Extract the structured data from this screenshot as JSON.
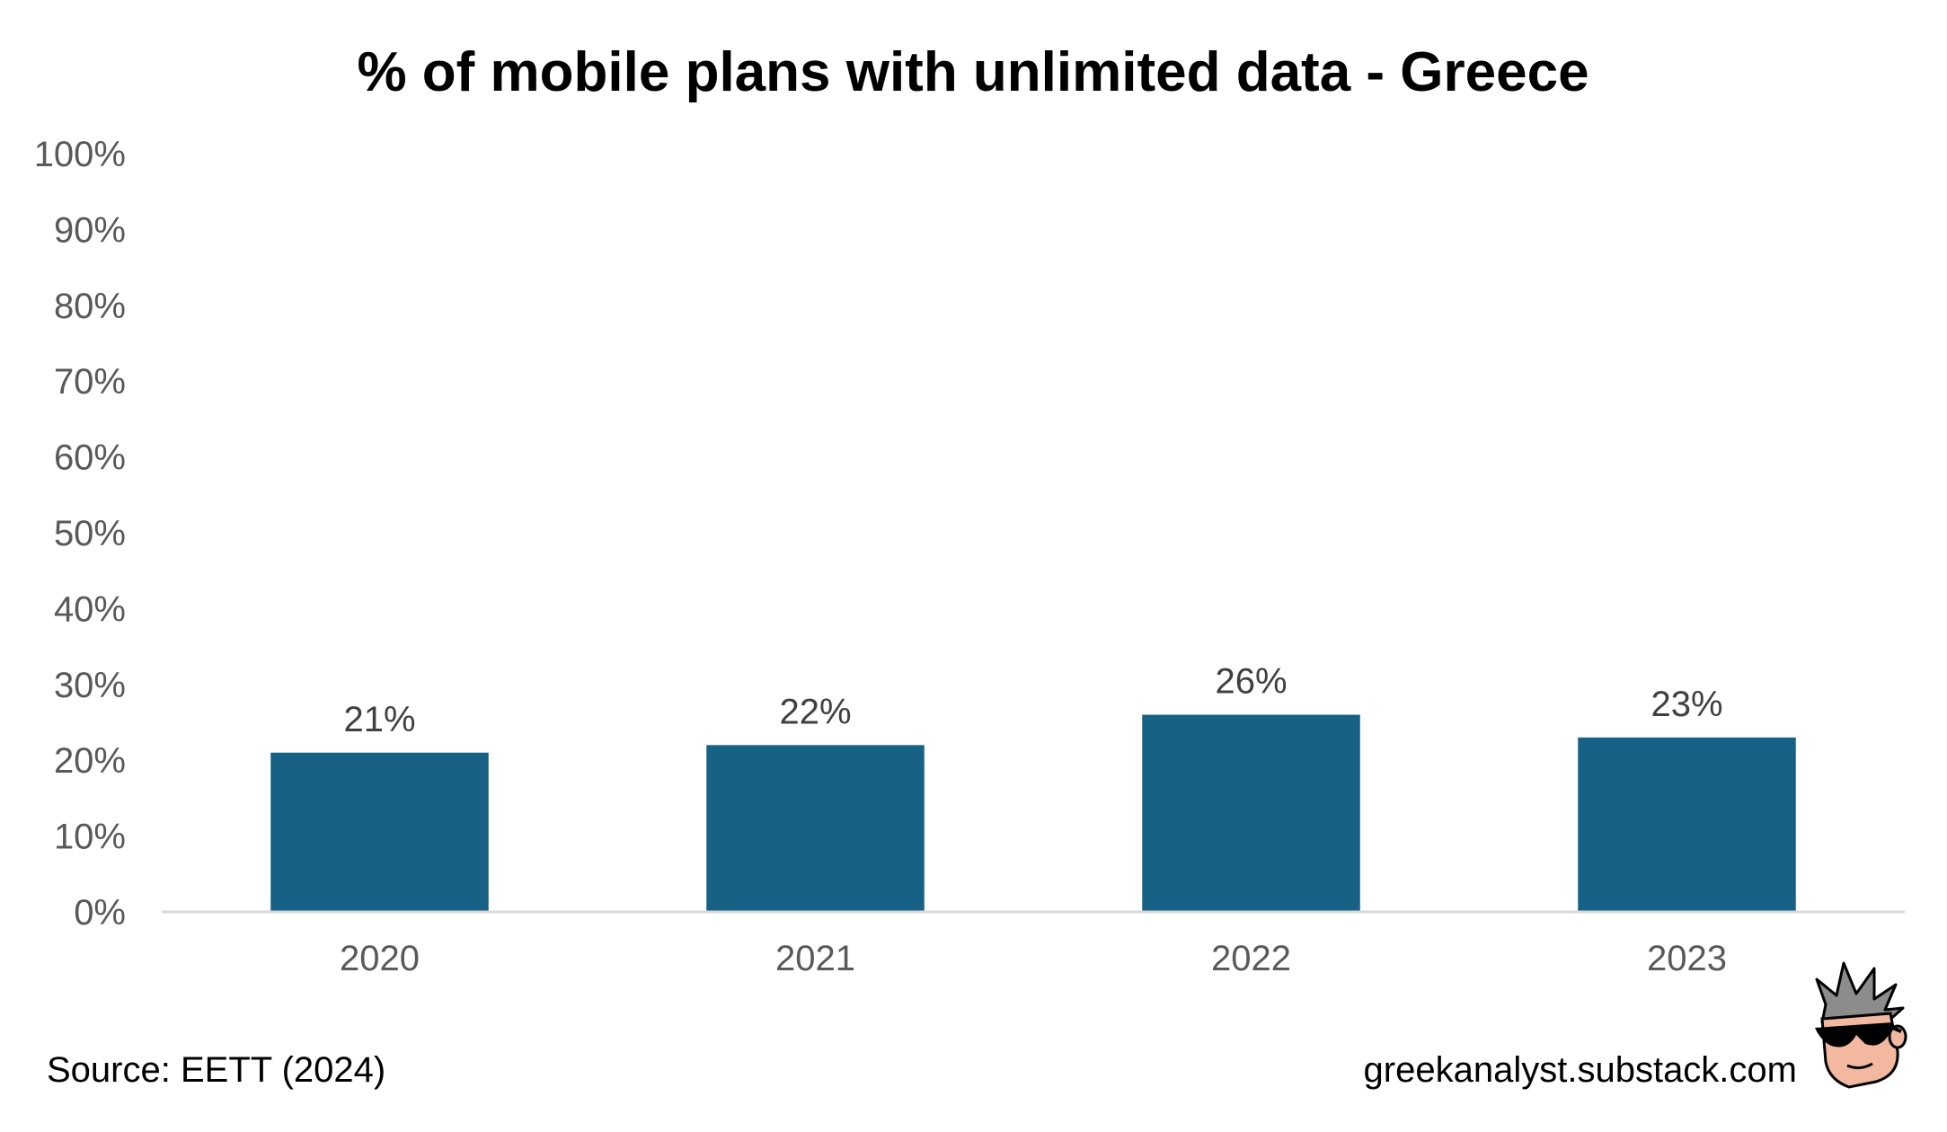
{
  "colors": {
    "bar": "#176184",
    "axis": "#d9d9d9",
    "tick_text": "#595959",
    "label_text": "#404040"
  },
  "chart_data": {
    "type": "bar",
    "title": "% of mobile plans with unlimited data - Greece",
    "categories": [
      "2020",
      "2021",
      "2022",
      "2023"
    ],
    "values": [
      21,
      22,
      26,
      23
    ],
    "data_labels": [
      "21%",
      "22%",
      "26%",
      "23%"
    ],
    "ylim": [
      0,
      100
    ],
    "yticks": [
      0,
      10,
      20,
      30,
      40,
      50,
      60,
      70,
      80,
      90,
      100
    ],
    "ytick_labels": [
      "0%",
      "10%",
      "20%",
      "30%",
      "40%",
      "50%",
      "60%",
      "70%",
      "80%",
      "90%",
      "100%"
    ],
    "xlabel": "",
    "ylabel": "",
    "grid": false,
    "legend": "none"
  },
  "footer": {
    "source": "Source: EETT (2024)",
    "website": "greekanalyst.substack.com"
  },
  "logo": {
    "icon": "cartoon-face-with-sunglasses-icon"
  }
}
